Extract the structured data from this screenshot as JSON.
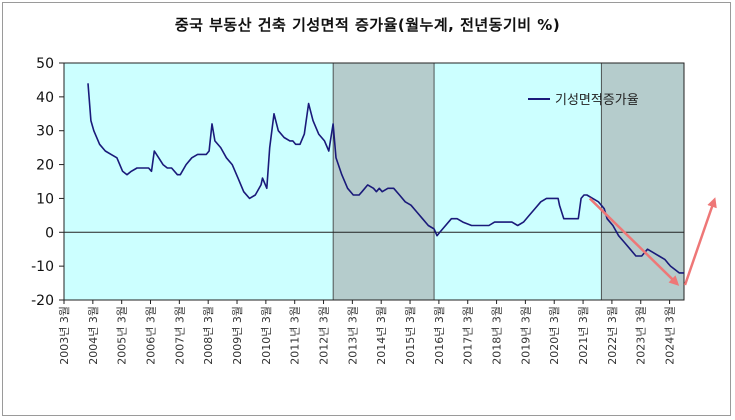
{
  "chart_data": {
    "type": "line",
    "title": "중국 부동산 건축 기성면적 증가율(월누계, 전년동기비 %)",
    "xlabel": "",
    "ylabel": "",
    "ylim": [
      -20,
      50
    ],
    "yticks": [
      -20,
      -10,
      0,
      10,
      20,
      30,
      40,
      50
    ],
    "xlim": [
      2003.167,
      2024.667
    ],
    "tick_labels": [
      "2003년 3월",
      "2004년 3월",
      "2005년 3월",
      "2006년 3월",
      "2007년 3월",
      "2008년 3월",
      "2009년 3월",
      "2010년 3월",
      "2011년 3월",
      "2012년 3월",
      "2013년 3월",
      "2014년 3월",
      "2015년 3월",
      "2016년 3월",
      "2017년 3월",
      "2018년 3월",
      "2019년 3월",
      "2020년 3월",
      "2021년 3월",
      "2022년 3월",
      "2023년 3월",
      "2024년 3월"
    ],
    "grid": false,
    "legend_position": "top-right",
    "colors": {
      "plot_bg": "#ccffff",
      "shade": "#b5cccc",
      "series": "#1a1a7a",
      "arrow": "#ee7777",
      "axis_label": "#333333"
    },
    "shaded_periods": [
      [
        2012.5,
        2016.0
      ],
      [
        2021.8,
        2024.667
      ]
    ],
    "series": [
      {
        "name": "기성면적증가율",
        "x": [
          2004.0,
          2004.1,
          2004.2,
          2004.4,
          2004.6,
          2004.8,
          2005.0,
          2005.2,
          2005.35,
          2005.5,
          2005.7,
          2005.9,
          2006.1,
          2006.2,
          2006.3,
          2006.45,
          2006.6,
          2006.75,
          2006.9,
          2007.1,
          2007.2,
          2007.4,
          2007.6,
          2007.8,
          2008.0,
          2008.1,
          2008.2,
          2008.3,
          2008.4,
          2008.6,
          2008.8,
          2009.0,
          2009.2,
          2009.4,
          2009.6,
          2009.8,
          2010.0,
          2010.05,
          2010.2,
          2010.3,
          2010.45,
          2010.6,
          2010.8,
          2011.0,
          2011.1,
          2011.2,
          2011.35,
          2011.5,
          2011.65,
          2011.8,
          2012.0,
          2012.1,
          2012.2,
          2012.35,
          2012.5,
          2012.6,
          2012.8,
          2013.0,
          2013.2,
          2013.4,
          2013.5,
          2013.7,
          2013.9,
          2014.0,
          2014.1,
          2014.2,
          2014.4,
          2014.6,
          2014.8,
          2015.0,
          2015.2,
          2015.4,
          2015.6,
          2015.8,
          2016.0,
          2016.1,
          2016.2,
          2016.3,
          2016.6,
          2016.8,
          2017.0,
          2017.3,
          2017.6,
          2017.9,
          2018.1,
          2018.3,
          2018.5,
          2018.7,
          2018.9,
          2019.1,
          2019.3,
          2019.5,
          2019.7,
          2019.9,
          2020.1,
          2020.3,
          2020.35,
          2020.5,
          2020.7,
          2020.9,
          2021.0,
          2021.1,
          2021.2,
          2021.3,
          2021.5,
          2021.7,
          2021.9,
          2022.0,
          2022.2,
          2022.4,
          2022.6,
          2022.8,
          2023.0,
          2023.2,
          2023.3,
          2023.4,
          2023.6,
          2023.8,
          2024.0,
          2024.1,
          2024.2,
          2024.35,
          2024.5,
          2024.667
        ],
        "y": [
          44,
          33,
          30,
          26,
          24,
          23,
          22,
          18,
          17,
          18,
          19,
          19,
          19,
          18,
          24,
          22,
          20,
          19,
          19,
          17,
          17,
          20,
          22,
          23,
          23,
          23,
          24,
          32,
          27,
          25,
          22,
          20,
          16,
          12,
          10,
          11,
          14,
          16,
          13,
          25,
          35,
          30,
          28,
          27,
          27,
          26,
          26,
          29,
          38,
          33,
          29,
          28,
          27,
          24,
          32,
          22,
          17,
          13,
          11,
          11,
          12,
          14,
          13,
          12,
          13,
          12,
          13,
          13,
          11,
          9,
          8,
          6,
          4,
          2,
          1,
          -1,
          0,
          1,
          4,
          4,
          3,
          2,
          2,
          2,
          3,
          3,
          3,
          3,
          2,
          3,
          5,
          7,
          9,
          10,
          10,
          10,
          8,
          4,
          4,
          4,
          4,
          10,
          11,
          11,
          10,
          9,
          7,
          4,
          2,
          -1,
          -3,
          -5,
          -7,
          -7,
          -6,
          -5,
          -6,
          -7,
          -8,
          -9,
          -10,
          -11,
          -12,
          -12
        ]
      }
    ]
  }
}
